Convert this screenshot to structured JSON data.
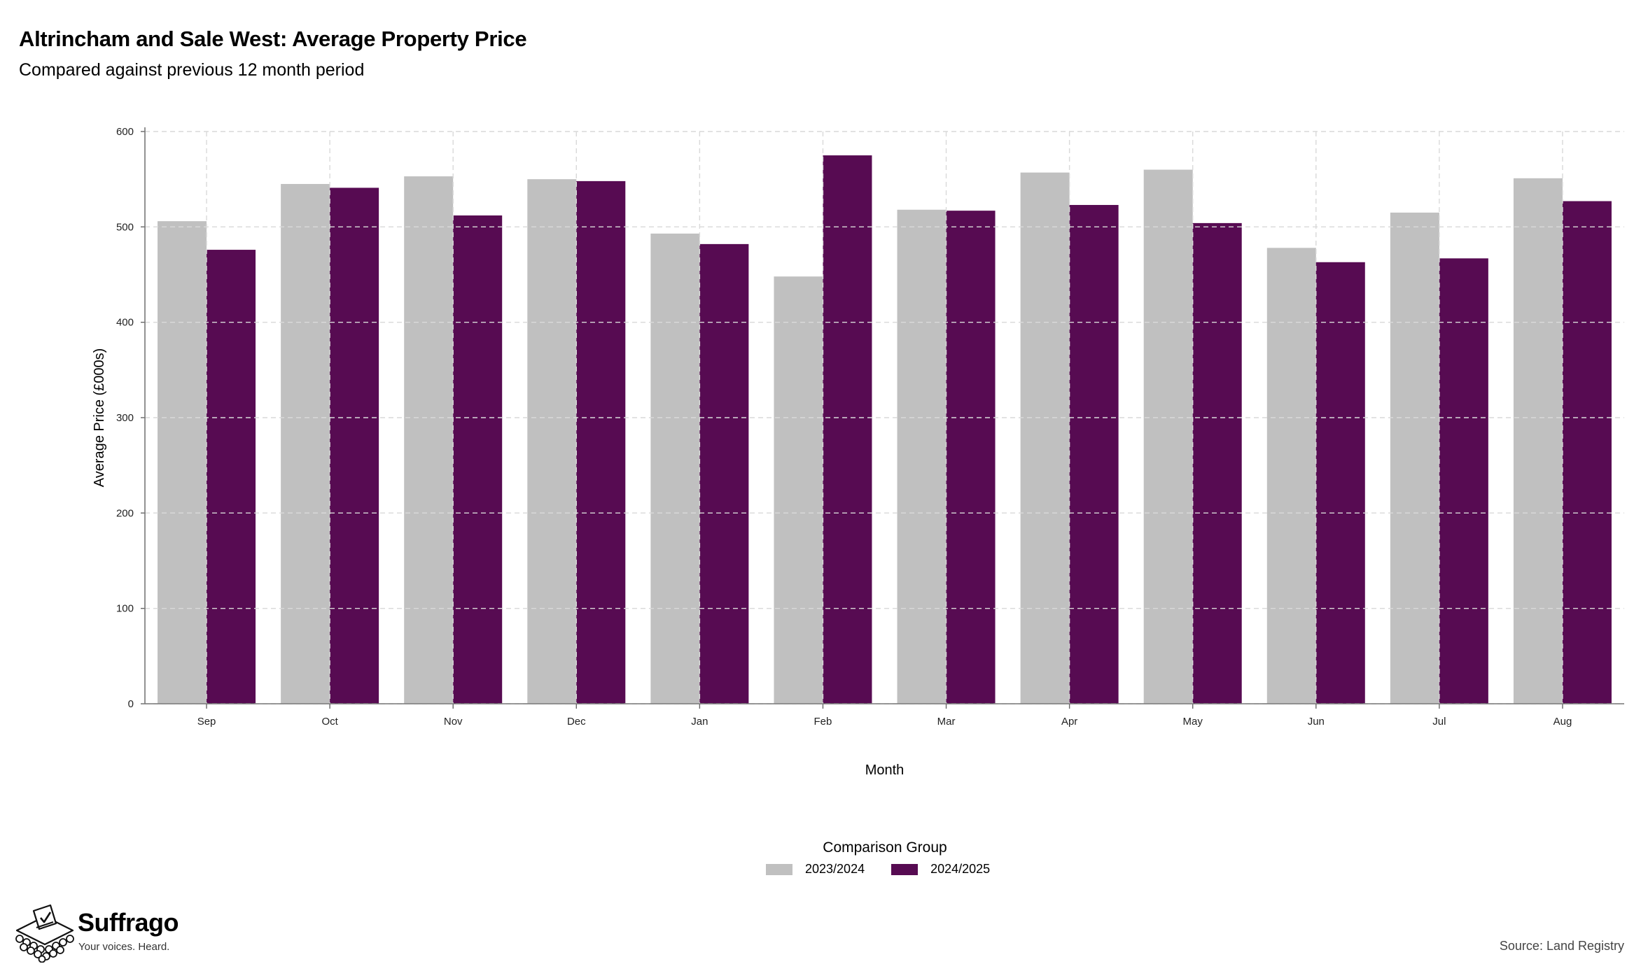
{
  "header": {
    "title": "Altrincham and Sale West: Average Property Price",
    "subtitle": "Compared against previous 12 month period"
  },
  "chart_data": {
    "type": "bar",
    "title": "Altrincham and Sale West: Average Property Price",
    "subtitle": "Compared against previous 12 month period",
    "xlabel": "Month",
    "ylabel": "Average Price (£000s)",
    "ylim": [
      0,
      600
    ],
    "yticks": [
      0,
      100,
      200,
      300,
      400,
      500,
      600
    ],
    "grid": true,
    "legend_placement": "bottom-center",
    "legend_title": "Comparison Group",
    "categories": [
      "Sep",
      "Oct",
      "Nov",
      "Dec",
      "Jan",
      "Feb",
      "Mar",
      "Apr",
      "May",
      "Jun",
      "Jul",
      "Aug"
    ],
    "series": [
      {
        "name": "2023/2024",
        "color": "#c0c0c0",
        "values": [
          506,
          545,
          553,
          550,
          493,
          448,
          518,
          557,
          560,
          478,
          515,
          551
        ]
      },
      {
        "name": "2024/2025",
        "color": "#570b52",
        "values": [
          476,
          541,
          512,
          548,
          482,
          575,
          517,
          523,
          504,
          463,
          467,
          527
        ]
      }
    ]
  },
  "footer": {
    "brand": "Suffrago",
    "tagline": "Your voices. Heard.",
    "source": "Source: Land Registry",
    "logo_icon": "ballot-box-icon"
  }
}
